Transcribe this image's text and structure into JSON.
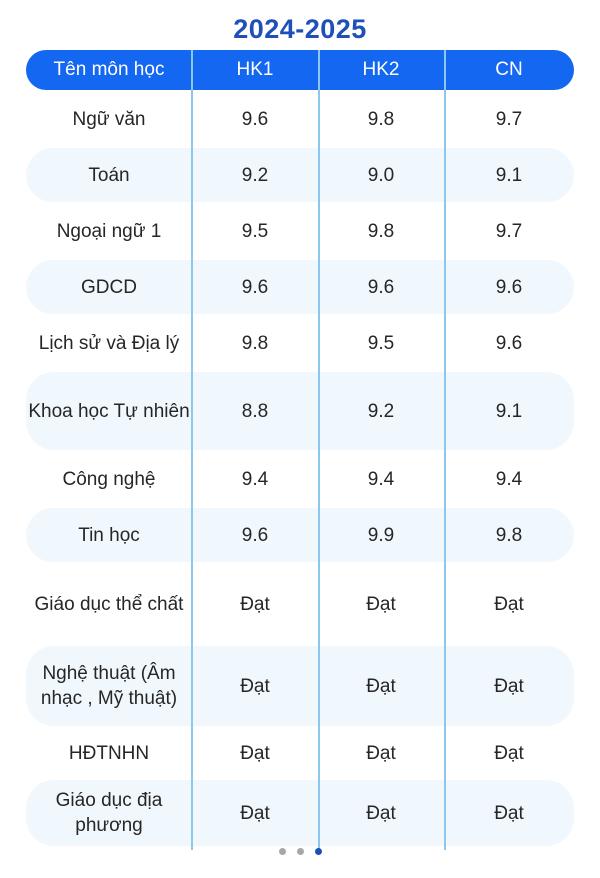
{
  "title": "2024-2025",
  "columns": [
    "Tên môn học",
    "HK1",
    "HK2",
    "CN"
  ],
  "rows": [
    {
      "subject": "Ngữ văn",
      "hk1": "9.6",
      "hk2": "9.8",
      "cn": "9.7"
    },
    {
      "subject": "Toán",
      "hk1": "9.2",
      "hk2": "9.0",
      "cn": "9.1"
    },
    {
      "subject": "Ngoại ngữ 1",
      "hk1": "9.5",
      "hk2": "9.8",
      "cn": "9.7"
    },
    {
      "subject": "GDCD",
      "hk1": "9.6",
      "hk2": "9.6",
      "cn": "9.6"
    },
    {
      "subject": "Lịch sử và Địa lý",
      "hk1": "9.8",
      "hk2": "9.5",
      "cn": "9.6"
    },
    {
      "subject": "Khoa học Tự nhiên",
      "hk1": "8.8",
      "hk2": "9.2",
      "cn": "9.1"
    },
    {
      "subject": "Công nghệ",
      "hk1": "9.4",
      "hk2": "9.4",
      "cn": "9.4"
    },
    {
      "subject": "Tin học",
      "hk1": "9.6",
      "hk2": "9.9",
      "cn": "9.8"
    },
    {
      "subject": "Giáo dục thể chất",
      "hk1": "Đạt",
      "hk2": "Đạt",
      "cn": "Đạt"
    },
    {
      "subject": "Nghệ thuật (Âm nhạc , Mỹ thuật)",
      "hk1": "Đạt",
      "hk2": "Đạt",
      "cn": "Đạt"
    },
    {
      "subject": "HĐTNHN",
      "hk1": "Đạt",
      "hk2": "Đạt",
      "cn": "Đạt"
    },
    {
      "subject": "Giáo dục địa phương",
      "hk1": "Đạt",
      "hk2": "Đạt",
      "cn": "Đạt"
    }
  ],
  "pagination": {
    "pages": 3,
    "active": 3
  },
  "colors": {
    "header": "#1367f0",
    "title": "#1f4fb8",
    "divider": "#8cc7ee",
    "row_alt": "#f1f8fd"
  }
}
